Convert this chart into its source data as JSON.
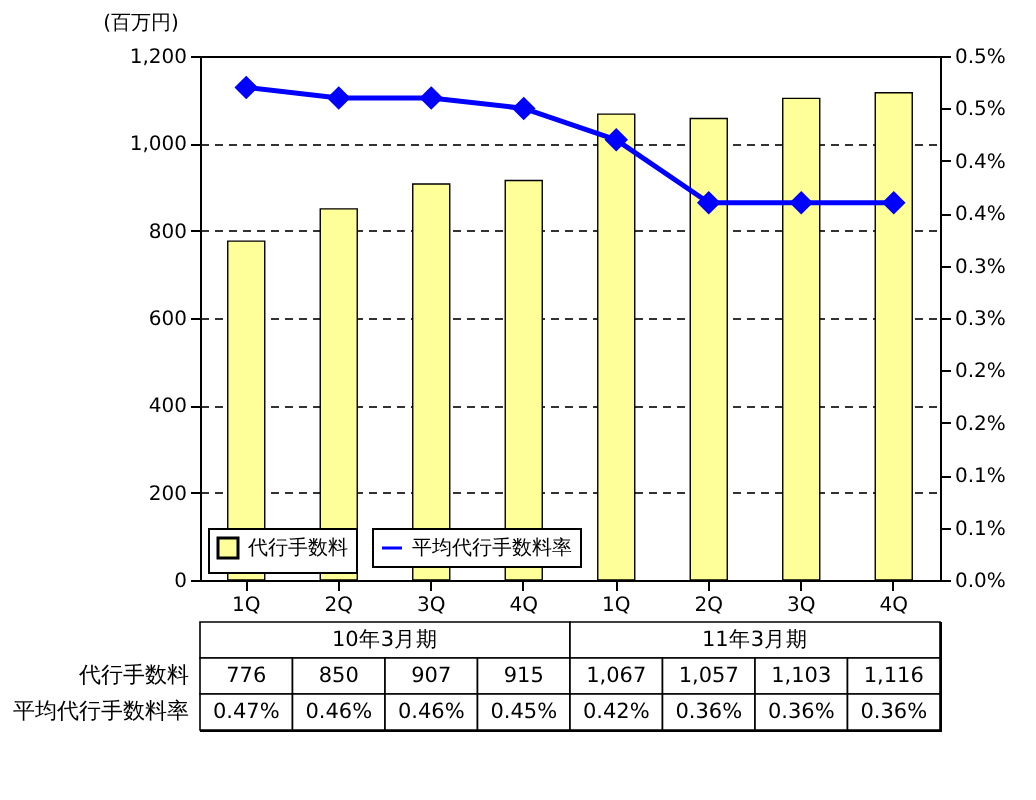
{
  "chart_data": {
    "type": "bar",
    "ylabel": "(百万円)",
    "categories": [
      "1Q",
      "2Q",
      "3Q",
      "4Q",
      "1Q",
      "2Q",
      "3Q",
      "4Q"
    ],
    "annotations": [
      "10年3月期",
      "11年3月期"
    ],
    "series": [
      {
        "name": "代行手数料",
        "color": "#ffff99",
        "values": [
          776,
          850,
          907,
          915,
          1067,
          1057,
          1103,
          1116
        ],
        "value_labels": [
          "776",
          "850",
          "907",
          "915",
          "1,067",
          "1,057",
          "1,103",
          "1,116"
        ]
      },
      {
        "name": "平均代行手数料率",
        "type": "line",
        "axis": "y2",
        "color": "#0000ff",
        "marker": "diamond",
        "line_style": "solid",
        "values": [
          0.47,
          0.46,
          0.46,
          0.45,
          0.42,
          0.36,
          0.36,
          0.36
        ],
        "value_labels": [
          "0.47%",
          "0.46%",
          "0.46%",
          "0.45%",
          "0.42%",
          "0.36%",
          "0.36%",
          "0.36%"
        ]
      }
    ],
    "ylim": [
      0,
      1200
    ],
    "yticks": [
      0,
      200,
      400,
      600,
      800,
      {
        "value": 1000,
        "label": "1,000"
      },
      {
        "value": 1200,
        "label": "1,200"
      }
    ],
    "y2lim": [
      0,
      0.5
    ],
    "y2ticks": [
      {
        "value": 0,
        "label": "0.0%"
      },
      {
        "value": 0.05,
        "label": "0.1%"
      },
      {
        "value": 0.1,
        "label": "0.1%"
      },
      {
        "value": 0.15,
        "label": "0.2%"
      },
      {
        "value": 0.2,
        "label": "0.2%"
      },
      {
        "value": 0.25,
        "label": "0.3%"
      },
      {
        "value": 0.3,
        "label": "0.3%"
      },
      {
        "value": 0.35,
        "label": "0.4%"
      },
      {
        "value": 0.4,
        "label": "0.4%"
      },
      {
        "value": 0.45,
        "label": "0.5%"
      },
      {
        "value": 0.5,
        "label": "0.5%"
      }
    ],
    "data_labels": true,
    "grid": "y",
    "legend": "bottom left"
  }
}
